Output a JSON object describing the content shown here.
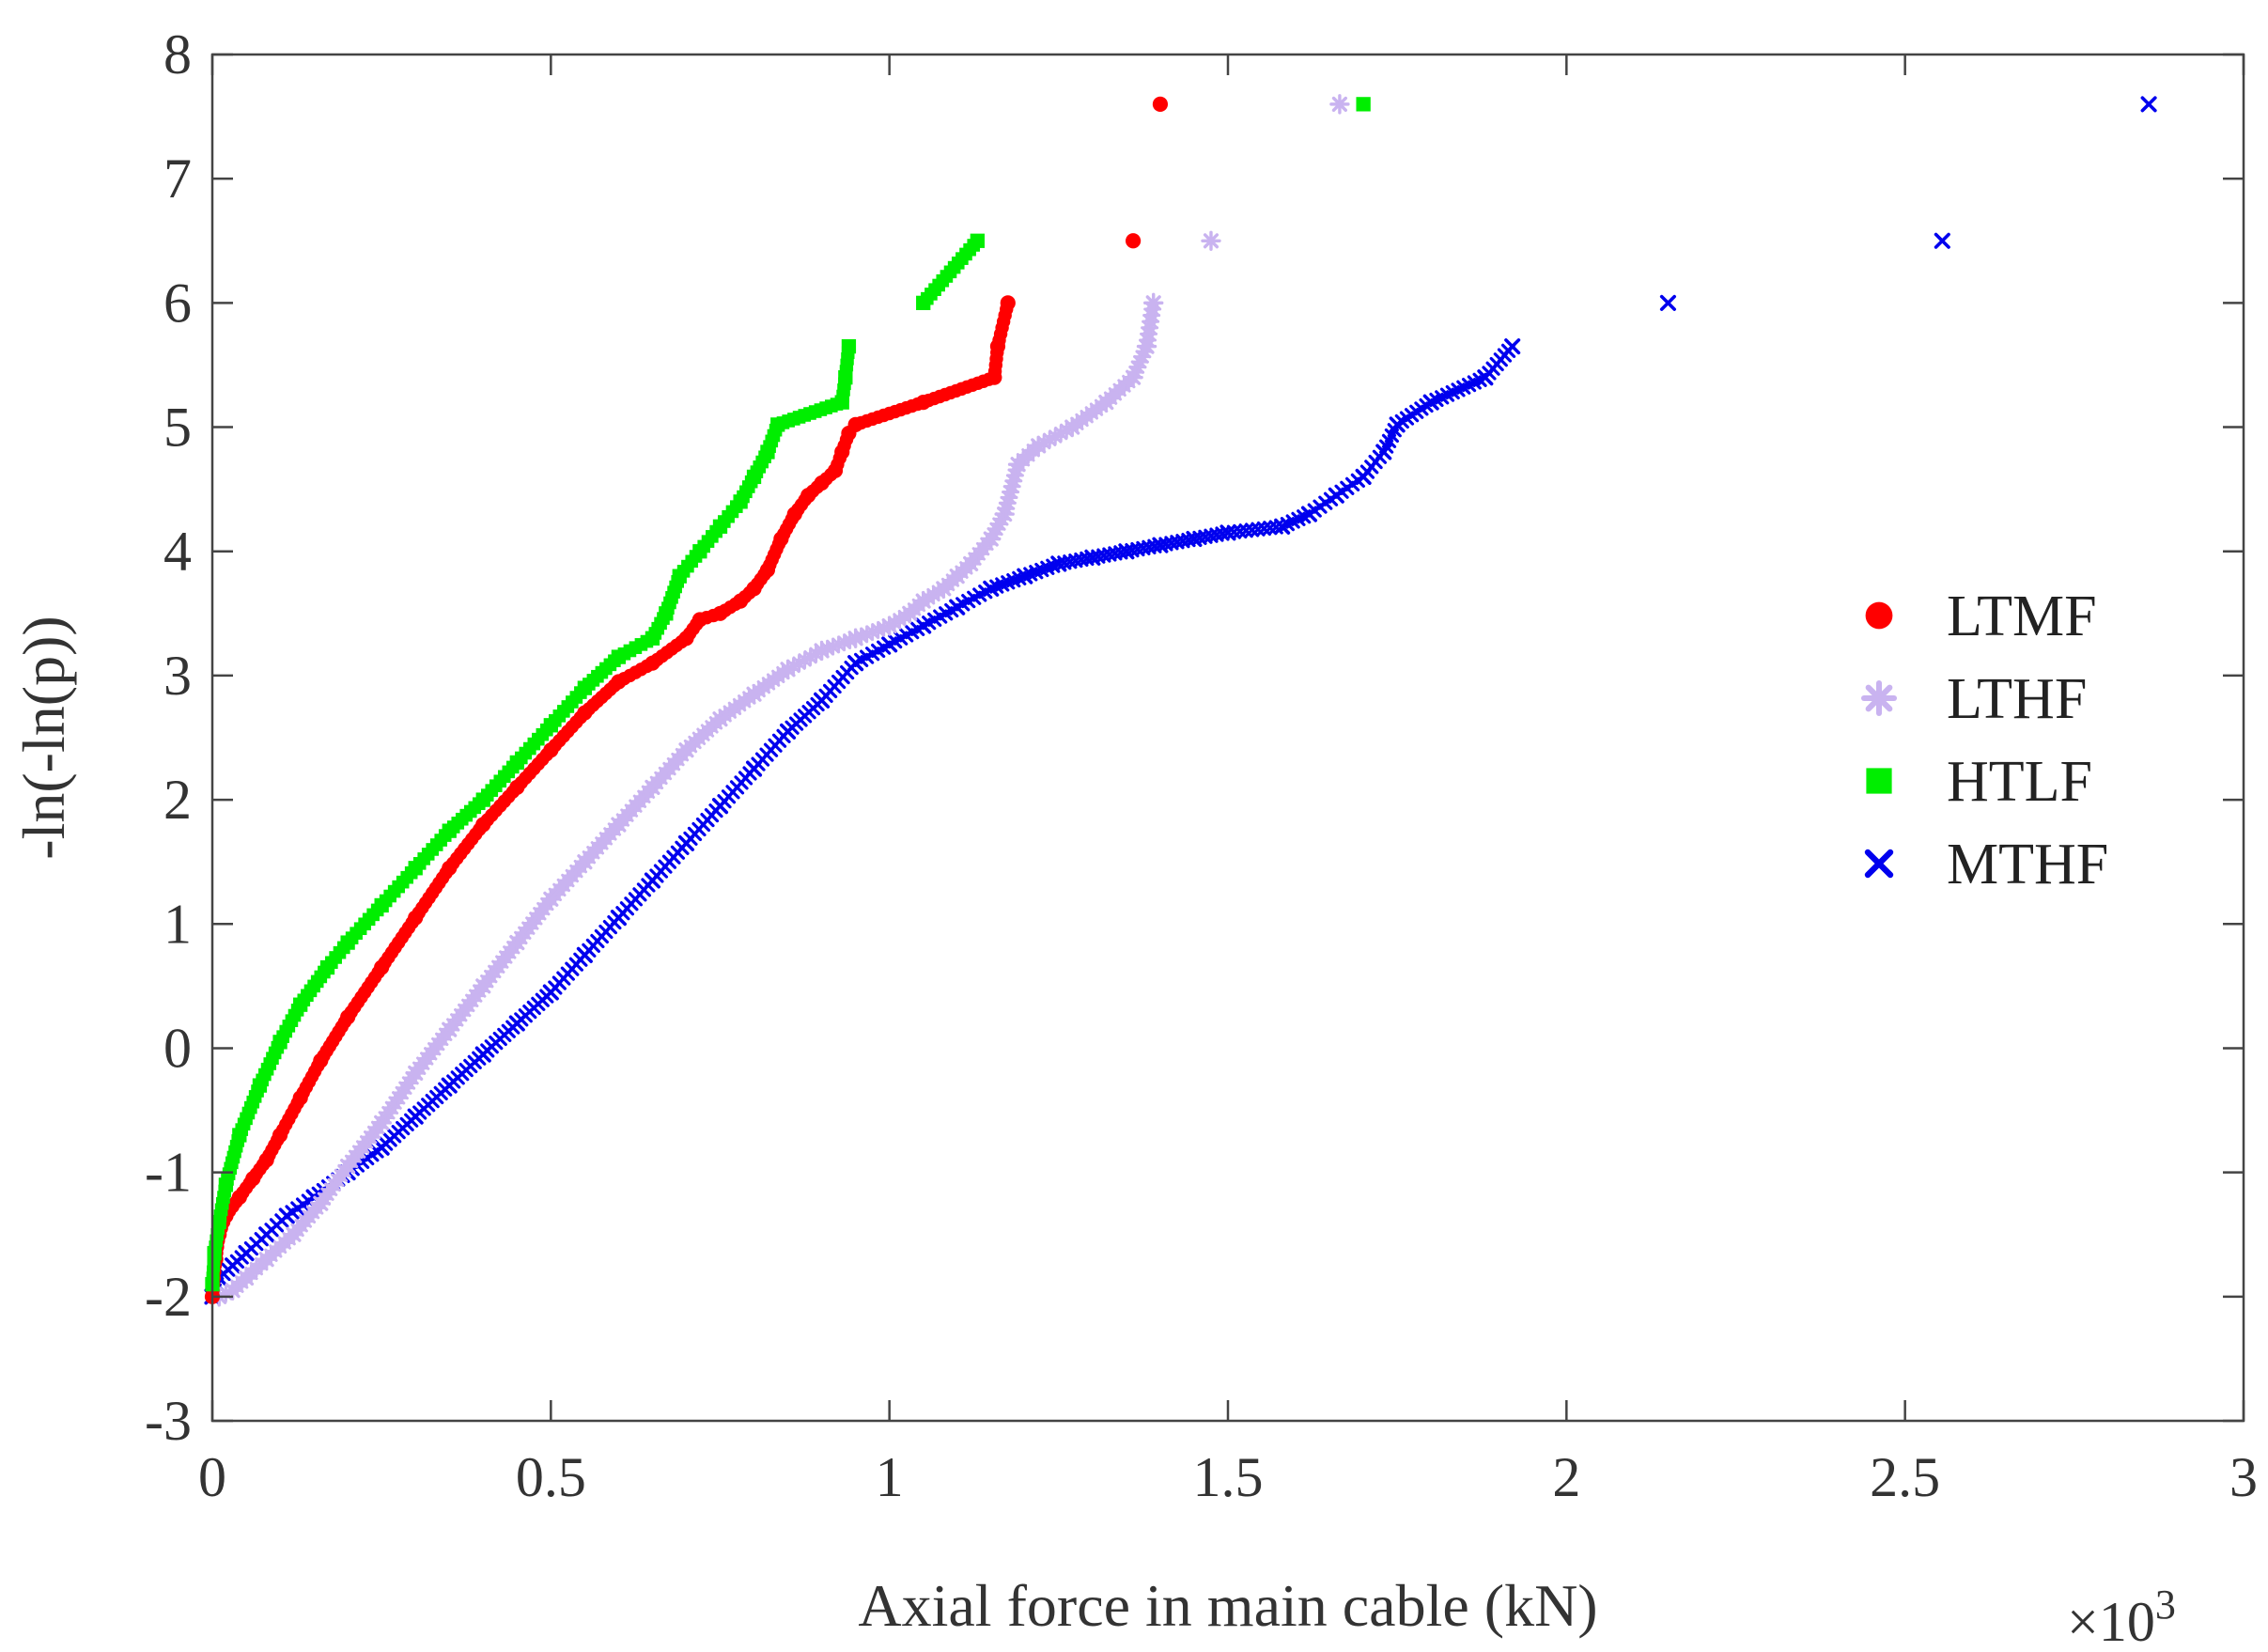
{
  "chart_data": {
    "type": "scatter",
    "title": "",
    "xlabel": "Axial force in main cable (kN)",
    "ylabel": "-ln(-ln(p))",
    "x_multiplier_label": "×10",
    "x_multiplier_exponent": "3",
    "xlim": [
      0,
      3
    ],
    "ylim": [
      -3,
      8
    ],
    "xticks": [
      0,
      0.5,
      1,
      1.5,
      2,
      2.5,
      3
    ],
    "xtick_labels": [
      "0",
      "0.5",
      "1",
      "1.5",
      "2",
      "2.5",
      "3"
    ],
    "yticks": [
      -3,
      -2,
      -1,
      0,
      1,
      2,
      3,
      4,
      5,
      6,
      7,
      8
    ],
    "ytick_labels": [
      "-3",
      "-2",
      "-1",
      "0",
      "1",
      "2",
      "3",
      "4",
      "5",
      "6",
      "7",
      "8"
    ],
    "grid": false,
    "legend_position": "right",
    "series": [
      {
        "name": "LTMF",
        "color": "#ff0000",
        "marker": "circle",
        "x": [
          0.0,
          0.005,
          0.01,
          0.02,
          0.04,
          0.06,
          0.08,
          0.1,
          0.13,
          0.16,
          0.2,
          0.25,
          0.3,
          0.35,
          0.4,
          0.45,
          0.5,
          0.55,
          0.6,
          0.65,
          0.7,
          0.72,
          0.75,
          0.78,
          0.8,
          0.82,
          0.84,
          0.86,
          0.88,
          0.9,
          0.92,
          0.93,
          0.94,
          0.95,
          1.05,
          1.155,
          1.16,
          1.175,
          1.36,
          1.4
        ],
        "y": [
          -2.0,
          -1.7,
          -1.5,
          -1.35,
          -1.2,
          -1.05,
          -0.9,
          -0.7,
          -0.4,
          -0.1,
          0.25,
          0.65,
          1.05,
          1.45,
          1.8,
          2.1,
          2.4,
          2.7,
          2.95,
          3.1,
          3.3,
          3.45,
          3.5,
          3.6,
          3.7,
          3.85,
          4.1,
          4.3,
          4.45,
          4.55,
          4.65,
          4.8,
          4.95,
          5.02,
          5.2,
          5.4,
          5.65,
          6.0,
          6.5,
          7.6
        ]
      },
      {
        "name": "LTHF",
        "color": "#c9b3f0",
        "marker": "asterisk",
        "x": [
          0.01,
          0.03,
          0.05,
          0.08,
          0.12,
          0.16,
          0.2,
          0.25,
          0.3,
          0.35,
          0.4,
          0.45,
          0.5,
          0.55,
          0.6,
          0.65,
          0.7,
          0.75,
          0.8,
          0.85,
          0.9,
          0.95,
          1.0,
          1.03,
          1.05,
          1.08,
          1.1,
          1.12,
          1.15,
          1.17,
          1.19,
          1.22,
          1.27,
          1.32,
          1.36,
          1.38,
          1.39,
          1.475,
          1.665
        ],
        "y": [
          -2.0,
          -1.95,
          -1.85,
          -1.7,
          -1.5,
          -1.25,
          -0.95,
          -0.6,
          -0.2,
          0.15,
          0.5,
          0.85,
          1.2,
          1.5,
          1.8,
          2.1,
          2.4,
          2.65,
          2.85,
          3.05,
          3.2,
          3.3,
          3.4,
          3.5,
          3.6,
          3.7,
          3.8,
          3.9,
          4.1,
          4.3,
          4.7,
          4.85,
          5.0,
          5.2,
          5.4,
          5.65,
          6.0,
          6.5,
          7.6
        ]
      },
      {
        "name": "HTLF",
        "color": "#00ee00",
        "marker": "square",
        "x": [
          0.0,
          0.003,
          0.01,
          0.02,
          0.04,
          0.07,
          0.1,
          0.13,
          0.17,
          0.2,
          0.25,
          0.3,
          0.35,
          0.4,
          0.45,
          0.5,
          0.55,
          0.6,
          0.65,
          0.67,
          0.69,
          0.72,
          0.75,
          0.78,
          0.8,
          0.82,
          0.835,
          0.93,
          0.935,
          0.94,
          1.05,
          1.13,
          1.7
        ],
        "y": [
          -1.9,
          -1.65,
          -1.4,
          -1.1,
          -0.7,
          -0.3,
          0.05,
          0.35,
          0.65,
          0.85,
          1.15,
          1.45,
          1.75,
          2.0,
          2.3,
          2.6,
          2.9,
          3.15,
          3.3,
          3.5,
          3.8,
          4.0,
          4.2,
          4.4,
          4.6,
          4.8,
          5.02,
          5.2,
          5.4,
          5.65,
          6.0,
          6.5,
          7.6
        ]
      },
      {
        "name": "MTHF",
        "color": "#0000ee",
        "marker": "x",
        "x": [
          0.0,
          0.01,
          0.03,
          0.05,
          0.08,
          0.11,
          0.15,
          0.2,
          0.25,
          0.3,
          0.35,
          0.4,
          0.45,
          0.5,
          0.55,
          0.6,
          0.65,
          0.7,
          0.75,
          0.8,
          0.85,
          0.9,
          0.95,
          1.0,
          1.05,
          1.1,
          1.15,
          1.2,
          1.25,
          1.3,
          1.35,
          1.4,
          1.45,
          1.5,
          1.58,
          1.62,
          1.66,
          1.7,
          1.73,
          1.75,
          1.8,
          1.88,
          1.92,
          2.15,
          2.555,
          2.86
        ],
        "y": [
          -2.0,
          -1.85,
          -1.75,
          -1.65,
          -1.5,
          -1.35,
          -1.2,
          -1.0,
          -0.8,
          -0.55,
          -0.3,
          -0.05,
          0.2,
          0.45,
          0.75,
          1.05,
          1.35,
          1.65,
          1.95,
          2.25,
          2.55,
          2.8,
          3.1,
          3.25,
          3.4,
          3.55,
          3.7,
          3.8,
          3.9,
          3.95,
          4.0,
          4.05,
          4.1,
          4.15,
          4.2,
          4.3,
          4.45,
          4.6,
          4.8,
          5.02,
          5.2,
          5.4,
          5.65,
          6.0,
          6.5,
          7.6
        ]
      }
    ]
  }
}
